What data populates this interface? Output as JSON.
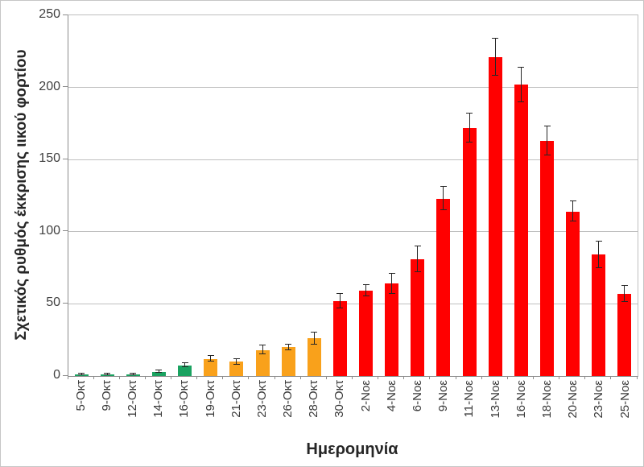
{
  "chart_data": {
    "type": "bar",
    "title": "",
    "xlabel": "Ημερομηνία",
    "ylabel": "Σχετικός ρυθμός έκκρισης ιικού φορτίου",
    "ylim": [
      0,
      250
    ],
    "yticks": [
      0,
      50,
      100,
      150,
      200,
      250
    ],
    "grid": true,
    "legend": false,
    "categories": [
      "5-Οκτ",
      "9-Οκτ",
      "12-Οκτ",
      "14-Οκτ",
      "16-Οκτ",
      "19-Οκτ",
      "21-Οκτ",
      "23-Οκτ",
      "26-Οκτ",
      "28-Οκτ",
      "30-Οκτ",
      "2-Νοε",
      "4-Νοε",
      "6-Νοε",
      "9-Νοε",
      "11-Νοε",
      "13-Νοε",
      "16-Νοε",
      "18-Νοε",
      "20-Νοε",
      "23-Νοε",
      "25-Νοε"
    ],
    "values": [
      1,
      1,
      1,
      3,
      7.5,
      12,
      10,
      18,
      20,
      26,
      52,
      59,
      64,
      81,
      123,
      172,
      221,
      202,
      163,
      114,
      84,
      57
    ],
    "errors": [
      0.5,
      0.5,
      0.5,
      1,
      1.5,
      2,
      2,
      3,
      2,
      4,
      5,
      4,
      7,
      9,
      8,
      10,
      13,
      12,
      10,
      7,
      9,
      5.5
    ],
    "bar_colors": [
      "green",
      "green",
      "green",
      "green",
      "green",
      "orange",
      "orange",
      "orange",
      "orange",
      "orange",
      "red",
      "red",
      "red",
      "red",
      "red",
      "red",
      "red",
      "red",
      "red",
      "red",
      "red",
      "red"
    ],
    "palette": {
      "green": "#1AA260",
      "orange": "#F9A11B",
      "red": "#FF0000"
    },
    "error_bar_color": "#262626",
    "gridline_color": "#BFBFBF",
    "axis_color": "#8C8C8C"
  }
}
